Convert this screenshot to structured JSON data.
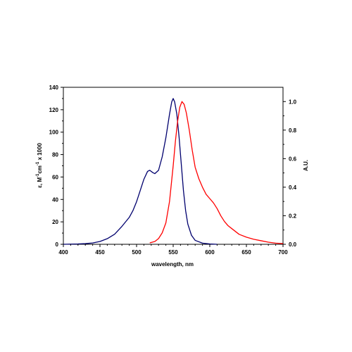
{
  "chart_data": {
    "type": "line",
    "xlabel": "wavelength, nm",
    "ylabel": {
      "base": "ε, M",
      "sup1": "-1",
      "mid": "cm",
      "sup2": "-1",
      "end": " x 1000"
    },
    "y2label": "A.U.",
    "xlim": [
      400,
      700
    ],
    "ylim": [
      0,
      140
    ],
    "y2lim": [
      0,
      1.1
    ],
    "xticks": [
      400,
      450,
      500,
      550,
      600,
      650,
      700
    ],
    "yticks": [
      0,
      20,
      40,
      60,
      80,
      100,
      120,
      140
    ],
    "y2ticks": [
      "0.0",
      "0.2",
      "0.4",
      "0.6",
      "0.8",
      "1.0"
    ],
    "grid": false,
    "series": [
      {
        "axis": "left",
        "color": "#00006e",
        "points": [
          [
            400,
            0
          ],
          [
            420,
            0.3
          ],
          [
            430,
            0.6
          ],
          [
            440,
            1.2
          ],
          [
            450,
            2.5
          ],
          [
            460,
            5
          ],
          [
            470,
            9
          ],
          [
            480,
            16
          ],
          [
            490,
            24
          ],
          [
            495,
            30
          ],
          [
            500,
            38
          ],
          [
            505,
            48
          ],
          [
            510,
            58
          ],
          [
            515,
            65
          ],
          [
            518,
            66
          ],
          [
            522,
            64
          ],
          [
            525,
            63
          ],
          [
            530,
            66
          ],
          [
            535,
            78
          ],
          [
            540,
            95
          ],
          [
            545,
            116
          ],
          [
            548,
            127
          ],
          [
            550,
            130
          ],
          [
            552,
            127
          ],
          [
            555,
            116
          ],
          [
            558,
            96
          ],
          [
            561,
            72
          ],
          [
            564,
            48
          ],
          [
            567,
            30
          ],
          [
            570,
            18
          ],
          [
            575,
            8
          ],
          [
            580,
            3.5
          ],
          [
            590,
            1
          ],
          [
            600,
            0.3
          ],
          [
            610,
            0
          ]
        ]
      },
      {
        "axis": "right",
        "color": "#ff0000",
        "points": [
          [
            518,
            0.01
          ],
          [
            525,
            0.02
          ],
          [
            530,
            0.04
          ],
          [
            535,
            0.08
          ],
          [
            540,
            0.15
          ],
          [
            545,
            0.3
          ],
          [
            550,
            0.55
          ],
          [
            553,
            0.72
          ],
          [
            556,
            0.86
          ],
          [
            559,
            0.96
          ],
          [
            562,
            1.0
          ],
          [
            565,
            0.98
          ],
          [
            568,
            0.92
          ],
          [
            572,
            0.8
          ],
          [
            576,
            0.66
          ],
          [
            580,
            0.54
          ],
          [
            585,
            0.46
          ],
          [
            590,
            0.4
          ],
          [
            595,
            0.35
          ],
          [
            600,
            0.32
          ],
          [
            605,
            0.29
          ],
          [
            610,
            0.25
          ],
          [
            615,
            0.2
          ],
          [
            620,
            0.16
          ],
          [
            625,
            0.13
          ],
          [
            630,
            0.11
          ],
          [
            640,
            0.07
          ],
          [
            650,
            0.05
          ],
          [
            660,
            0.035
          ],
          [
            670,
            0.025
          ],
          [
            680,
            0.015
          ],
          [
            690,
            0.008
          ],
          [
            700,
            0.005
          ]
        ]
      }
    ]
  }
}
